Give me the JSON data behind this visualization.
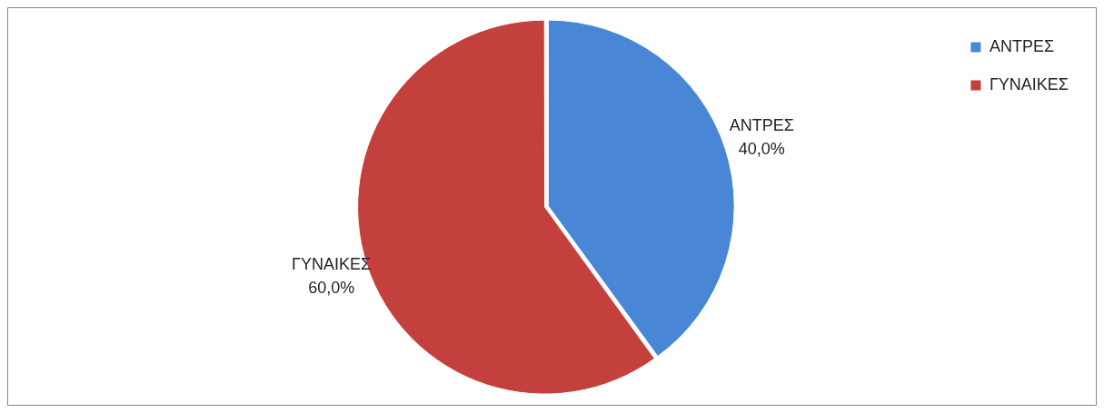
{
  "chart_data": {
    "type": "pie",
    "categories": [
      "ΑΝΤΡΕΣ",
      "ΓΥΝΑΙΚΕΣ"
    ],
    "values": [
      40,
      60
    ],
    "colors": [
      "#4a86d6",
      "#c4403c"
    ],
    "value_labels": [
      "40,0%",
      "60,0%"
    ],
    "legend": "top right"
  }
}
